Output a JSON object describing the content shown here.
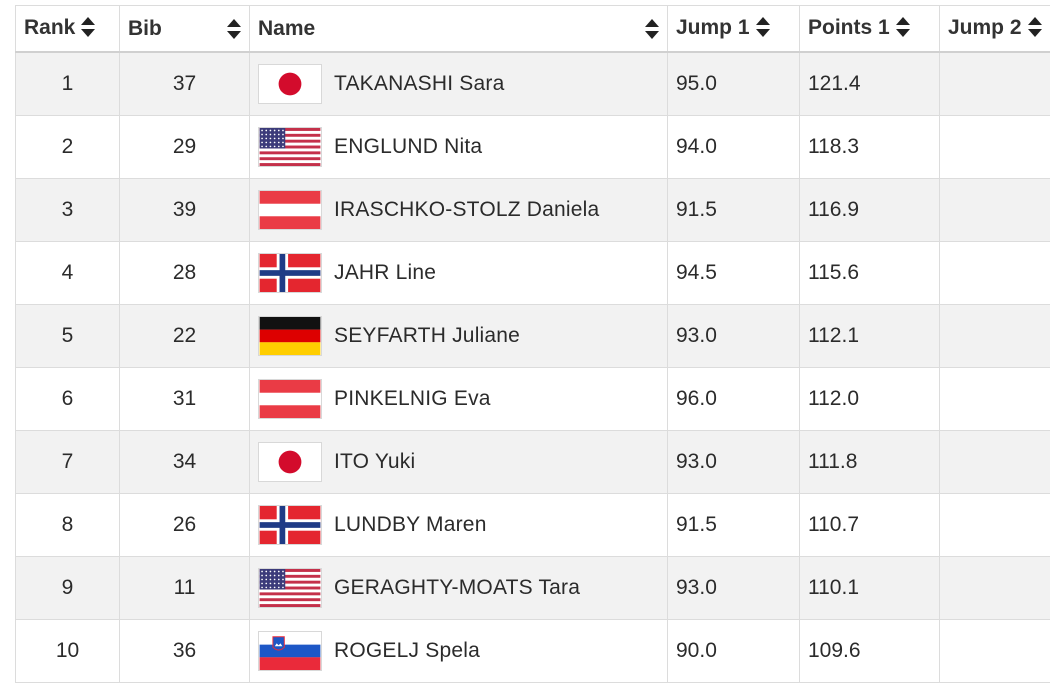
{
  "columns": {
    "rank": "Rank",
    "bib": "Bib",
    "name": "Name",
    "jump1": "Jump 1",
    "points1": "Points 1",
    "jump2": "Jump 2"
  },
  "rows": [
    {
      "rank": "1",
      "bib": "37",
      "flag": "JPN",
      "name": "TAKANASHI Sara",
      "jump1": "95.0",
      "points1": "121.4"
    },
    {
      "rank": "2",
      "bib": "29",
      "flag": "USA",
      "name": "ENGLUND Nita",
      "jump1": "94.0",
      "points1": "118.3"
    },
    {
      "rank": "3",
      "bib": "39",
      "flag": "AUT",
      "name": "IRASCHKO-STOLZ Daniela",
      "jump1": "91.5",
      "points1": "116.9"
    },
    {
      "rank": "4",
      "bib": "28",
      "flag": "NOR",
      "name": "JAHR Line",
      "jump1": "94.5",
      "points1": "115.6"
    },
    {
      "rank": "5",
      "bib": "22",
      "flag": "GER",
      "name": "SEYFARTH Juliane",
      "jump1": "93.0",
      "points1": "112.1"
    },
    {
      "rank": "6",
      "bib": "31",
      "flag": "AUT",
      "name": "PINKELNIG Eva",
      "jump1": "96.0",
      "points1": "112.0"
    },
    {
      "rank": "7",
      "bib": "34",
      "flag": "JPN",
      "name": "ITO Yuki",
      "jump1": "93.0",
      "points1": "111.8"
    },
    {
      "rank": "8",
      "bib": "26",
      "flag": "NOR",
      "name": "LUNDBY Maren",
      "jump1": "91.5",
      "points1": "110.7"
    },
    {
      "rank": "9",
      "bib": "11",
      "flag": "USA",
      "name": "GERAGHTY-MOATS Tara",
      "jump1": "93.0",
      "points1": "110.1"
    },
    {
      "rank": "10",
      "bib": "36",
      "flag": "SLO",
      "name": "ROGELJ Spela",
      "jump1": "90.0",
      "points1": "109.6"
    }
  ]
}
